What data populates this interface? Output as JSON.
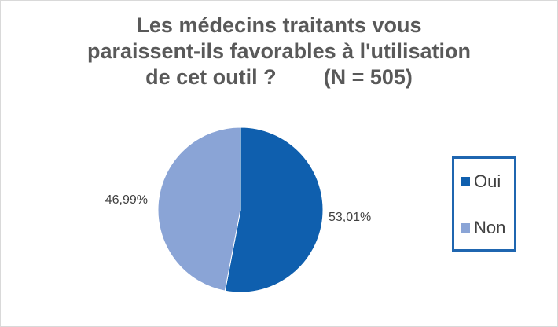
{
  "chart_data": {
    "type": "pie",
    "title_lines": [
      "Les médecins traitants vous",
      "paraissent-ils favorables à l'utilisation",
      "de cet outil ?        (N = 505)"
    ],
    "slices": [
      {
        "name": "Oui",
        "value": 53.01,
        "label": "53,01%",
        "color": "#0f5fae"
      },
      {
        "name": "Non",
        "value": 46.99,
        "label": "46,99%",
        "color": "#8aa4d6"
      }
    ],
    "start_angle_deg": 0,
    "direction": "clockwise",
    "legend_position": "right"
  },
  "legend": {
    "items": [
      {
        "label": "Oui",
        "color": "#0f5fae"
      },
      {
        "label": "Non",
        "color": "#8aa4d6"
      }
    ]
  }
}
